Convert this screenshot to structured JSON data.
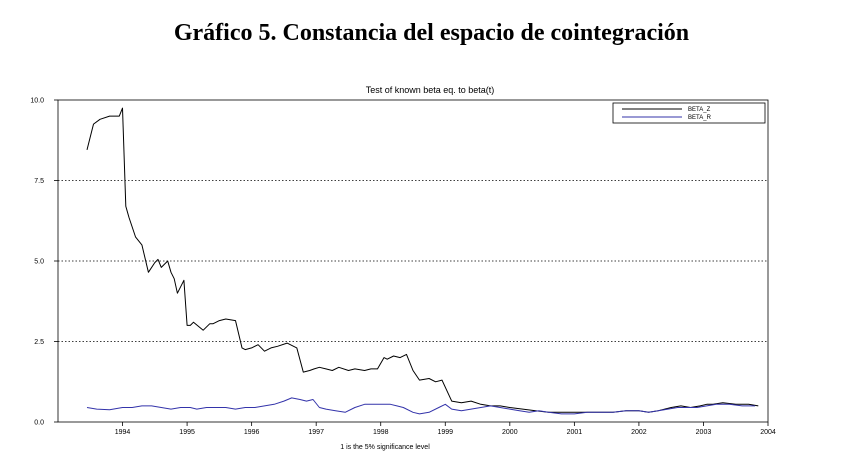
{
  "page": {
    "title": "Gráfico 5. Constancia del espacio de cointegración"
  },
  "chart_data": {
    "type": "line",
    "title": "Test of known beta eq. to beta(t)",
    "xlabel": "1 is the 5% significance level",
    "ylabel": "",
    "xlim": [
      1993.0,
      2004.0
    ],
    "ylim": [
      0,
      10
    ],
    "y_ticks": [
      0,
      2.5,
      5,
      7.5,
      10
    ],
    "y_tick_labels": [
      "0.0",
      "2.5",
      "5.0",
      "7.5",
      "10.0"
    ],
    "x_ticks": [
      1994,
      1995,
      1996,
      1997,
      1998,
      1999,
      2000,
      2001,
      2002,
      2003,
      2004
    ],
    "x_tick_labels": [
      "1994",
      "1995",
      "1996",
      "1997",
      "1998",
      "1999",
      "2000",
      "2001",
      "2002",
      "2003",
      "2004"
    ],
    "grid": "horizontal dotted",
    "legend_position": "top-right",
    "series": [
      {
        "name": "BETA_Z",
        "color": "#000000",
        "x": [
          1993.45,
          1993.55,
          1993.65,
          1993.8,
          1993.95,
          1994.0,
          1994.05,
          1994.1,
          1994.2,
          1994.3,
          1994.4,
          1994.5,
          1994.55,
          1994.6,
          1994.7,
          1994.75,
          1994.8,
          1994.85,
          1994.95,
          1995.0,
          1995.05,
          1995.1,
          1995.25,
          1995.35,
          1995.4,
          1995.5,
          1995.6,
          1995.75,
          1995.85,
          1995.9,
          1996.0,
          1996.1,
          1996.2,
          1996.3,
          1996.4,
          1996.55,
          1996.7,
          1996.8,
          1996.9,
          1996.97,
          1997.05,
          1997.15,
          1997.25,
          1997.35,
          1997.5,
          1997.6,
          1997.75,
          1997.85,
          1997.95,
          1998.05,
          1998.1,
          1998.2,
          1998.3,
          1998.4,
          1998.5,
          1998.6,
          1998.75,
          1998.85,
          1998.95,
          1999.1,
          1999.25,
          1999.4,
          1999.55,
          1999.7,
          1999.85,
          2000.0,
          2000.2,
          2000.4,
          2000.6,
          2000.8,
          2001.0,
          2001.2,
          2001.4,
          2001.6,
          2001.8,
          2002.0,
          2002.15,
          2002.3,
          2002.5,
          2002.65,
          2002.8,
          2002.95,
          2003.05,
          2003.15,
          2003.3,
          2003.5,
          2003.7,
          2003.85
        ],
        "values": [
          8.45,
          9.25,
          9.4,
          9.5,
          9.5,
          9.75,
          6.7,
          6.35,
          5.75,
          5.5,
          4.65,
          4.95,
          5.05,
          4.8,
          5.0,
          4.65,
          4.45,
          4.0,
          4.4,
          3.0,
          3.0,
          3.1,
          2.85,
          3.05,
          3.05,
          3.15,
          3.2,
          3.15,
          2.3,
          2.25,
          2.3,
          2.4,
          2.2,
          2.3,
          2.35,
          2.45,
          2.3,
          1.55,
          1.6,
          1.65,
          1.7,
          1.65,
          1.6,
          1.7,
          1.6,
          1.65,
          1.6,
          1.65,
          1.65,
          2.0,
          1.95,
          2.05,
          2.0,
          2.1,
          1.6,
          1.3,
          1.35,
          1.25,
          1.3,
          0.65,
          0.6,
          0.65,
          0.55,
          0.5,
          0.5,
          0.45,
          0.4,
          0.35,
          0.3,
          0.3,
          0.3,
          0.3,
          0.3,
          0.3,
          0.35,
          0.35,
          0.3,
          0.35,
          0.45,
          0.5,
          0.45,
          0.5,
          0.55,
          0.55,
          0.6,
          0.55,
          0.55,
          0.5
        ]
      },
      {
        "name": "BETA_R",
        "color": "#3333aa",
        "x": [
          1993.45,
          1993.6,
          1993.8,
          1994.0,
          1994.15,
          1994.3,
          1994.45,
          1994.6,
          1994.75,
          1994.9,
          1995.05,
          1995.15,
          1995.3,
          1995.45,
          1995.6,
          1995.75,
          1995.9,
          1996.05,
          1996.2,
          1996.35,
          1996.5,
          1996.62,
          1996.75,
          1996.85,
          1996.95,
          1997.05,
          1997.15,
          1997.3,
          1997.45,
          1997.6,
          1997.75,
          1997.9,
          1998.05,
          1998.15,
          1998.25,
          1998.35,
          1998.5,
          1998.6,
          1998.75,
          1998.9,
          1999.0,
          1999.1,
          1999.25,
          1999.4,
          1999.55,
          1999.7,
          1999.85,
          2000.0,
          2000.15,
          2000.3,
          2000.45,
          2000.6,
          2000.8,
          2001.0,
          2001.2,
          2001.4,
          2001.6,
          2001.8,
          2002.0,
          2002.15,
          2002.3,
          2002.45,
          2002.6,
          2002.75,
          2002.9,
          2003.05,
          2003.2,
          2003.4,
          2003.6,
          2003.8
        ],
        "values": [
          0.45,
          0.4,
          0.38,
          0.45,
          0.45,
          0.5,
          0.5,
          0.45,
          0.4,
          0.45,
          0.45,
          0.4,
          0.45,
          0.45,
          0.45,
          0.4,
          0.45,
          0.45,
          0.5,
          0.55,
          0.65,
          0.75,
          0.7,
          0.65,
          0.7,
          0.45,
          0.4,
          0.35,
          0.3,
          0.45,
          0.55,
          0.55,
          0.55,
          0.55,
          0.5,
          0.45,
          0.3,
          0.25,
          0.3,
          0.45,
          0.55,
          0.4,
          0.35,
          0.4,
          0.45,
          0.5,
          0.45,
          0.4,
          0.35,
          0.3,
          0.35,
          0.3,
          0.25,
          0.25,
          0.3,
          0.3,
          0.3,
          0.35,
          0.35,
          0.3,
          0.35,
          0.4,
          0.45,
          0.45,
          0.45,
          0.5,
          0.55,
          0.55,
          0.5,
          0.5
        ]
      }
    ]
  }
}
